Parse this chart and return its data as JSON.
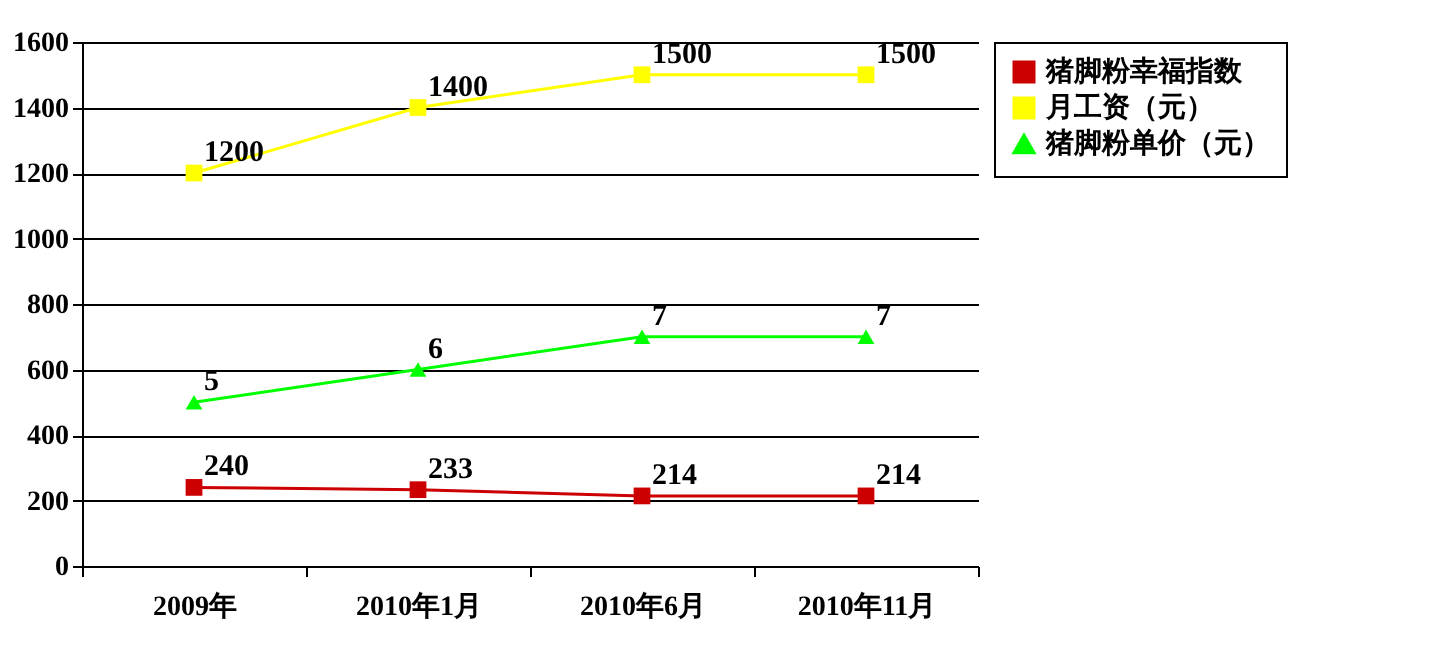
{
  "chart_data": {
    "type": "line",
    "categories": [
      "2009年",
      "2010年1月",
      "2010年6月",
      "2010年11月"
    ],
    "ylim": [
      0,
      1600
    ],
    "yticks": [
      0,
      200,
      400,
      600,
      800,
      1000,
      1200,
      1400,
      1600
    ],
    "y2lim": [
      0,
      16
    ],
    "grid": "y",
    "legend": "right",
    "data_labels": true,
    "series": [
      {
        "name": "猪脚粉幸福指数",
        "color": "#cc0000",
        "marker": "square",
        "values": [
          240,
          233,
          214,
          214
        ]
      },
      {
        "name": "月工资（元）",
        "color": "#ffff00",
        "marker": "square",
        "values": [
          1200,
          1400,
          1500,
          1500
        ]
      },
      {
        "name": "猪脚粉单价（元）",
        "color": "#00ff00",
        "marker": "triangle",
        "axis": "y2",
        "values": [
          5,
          6,
          7,
          7
        ]
      }
    ]
  }
}
